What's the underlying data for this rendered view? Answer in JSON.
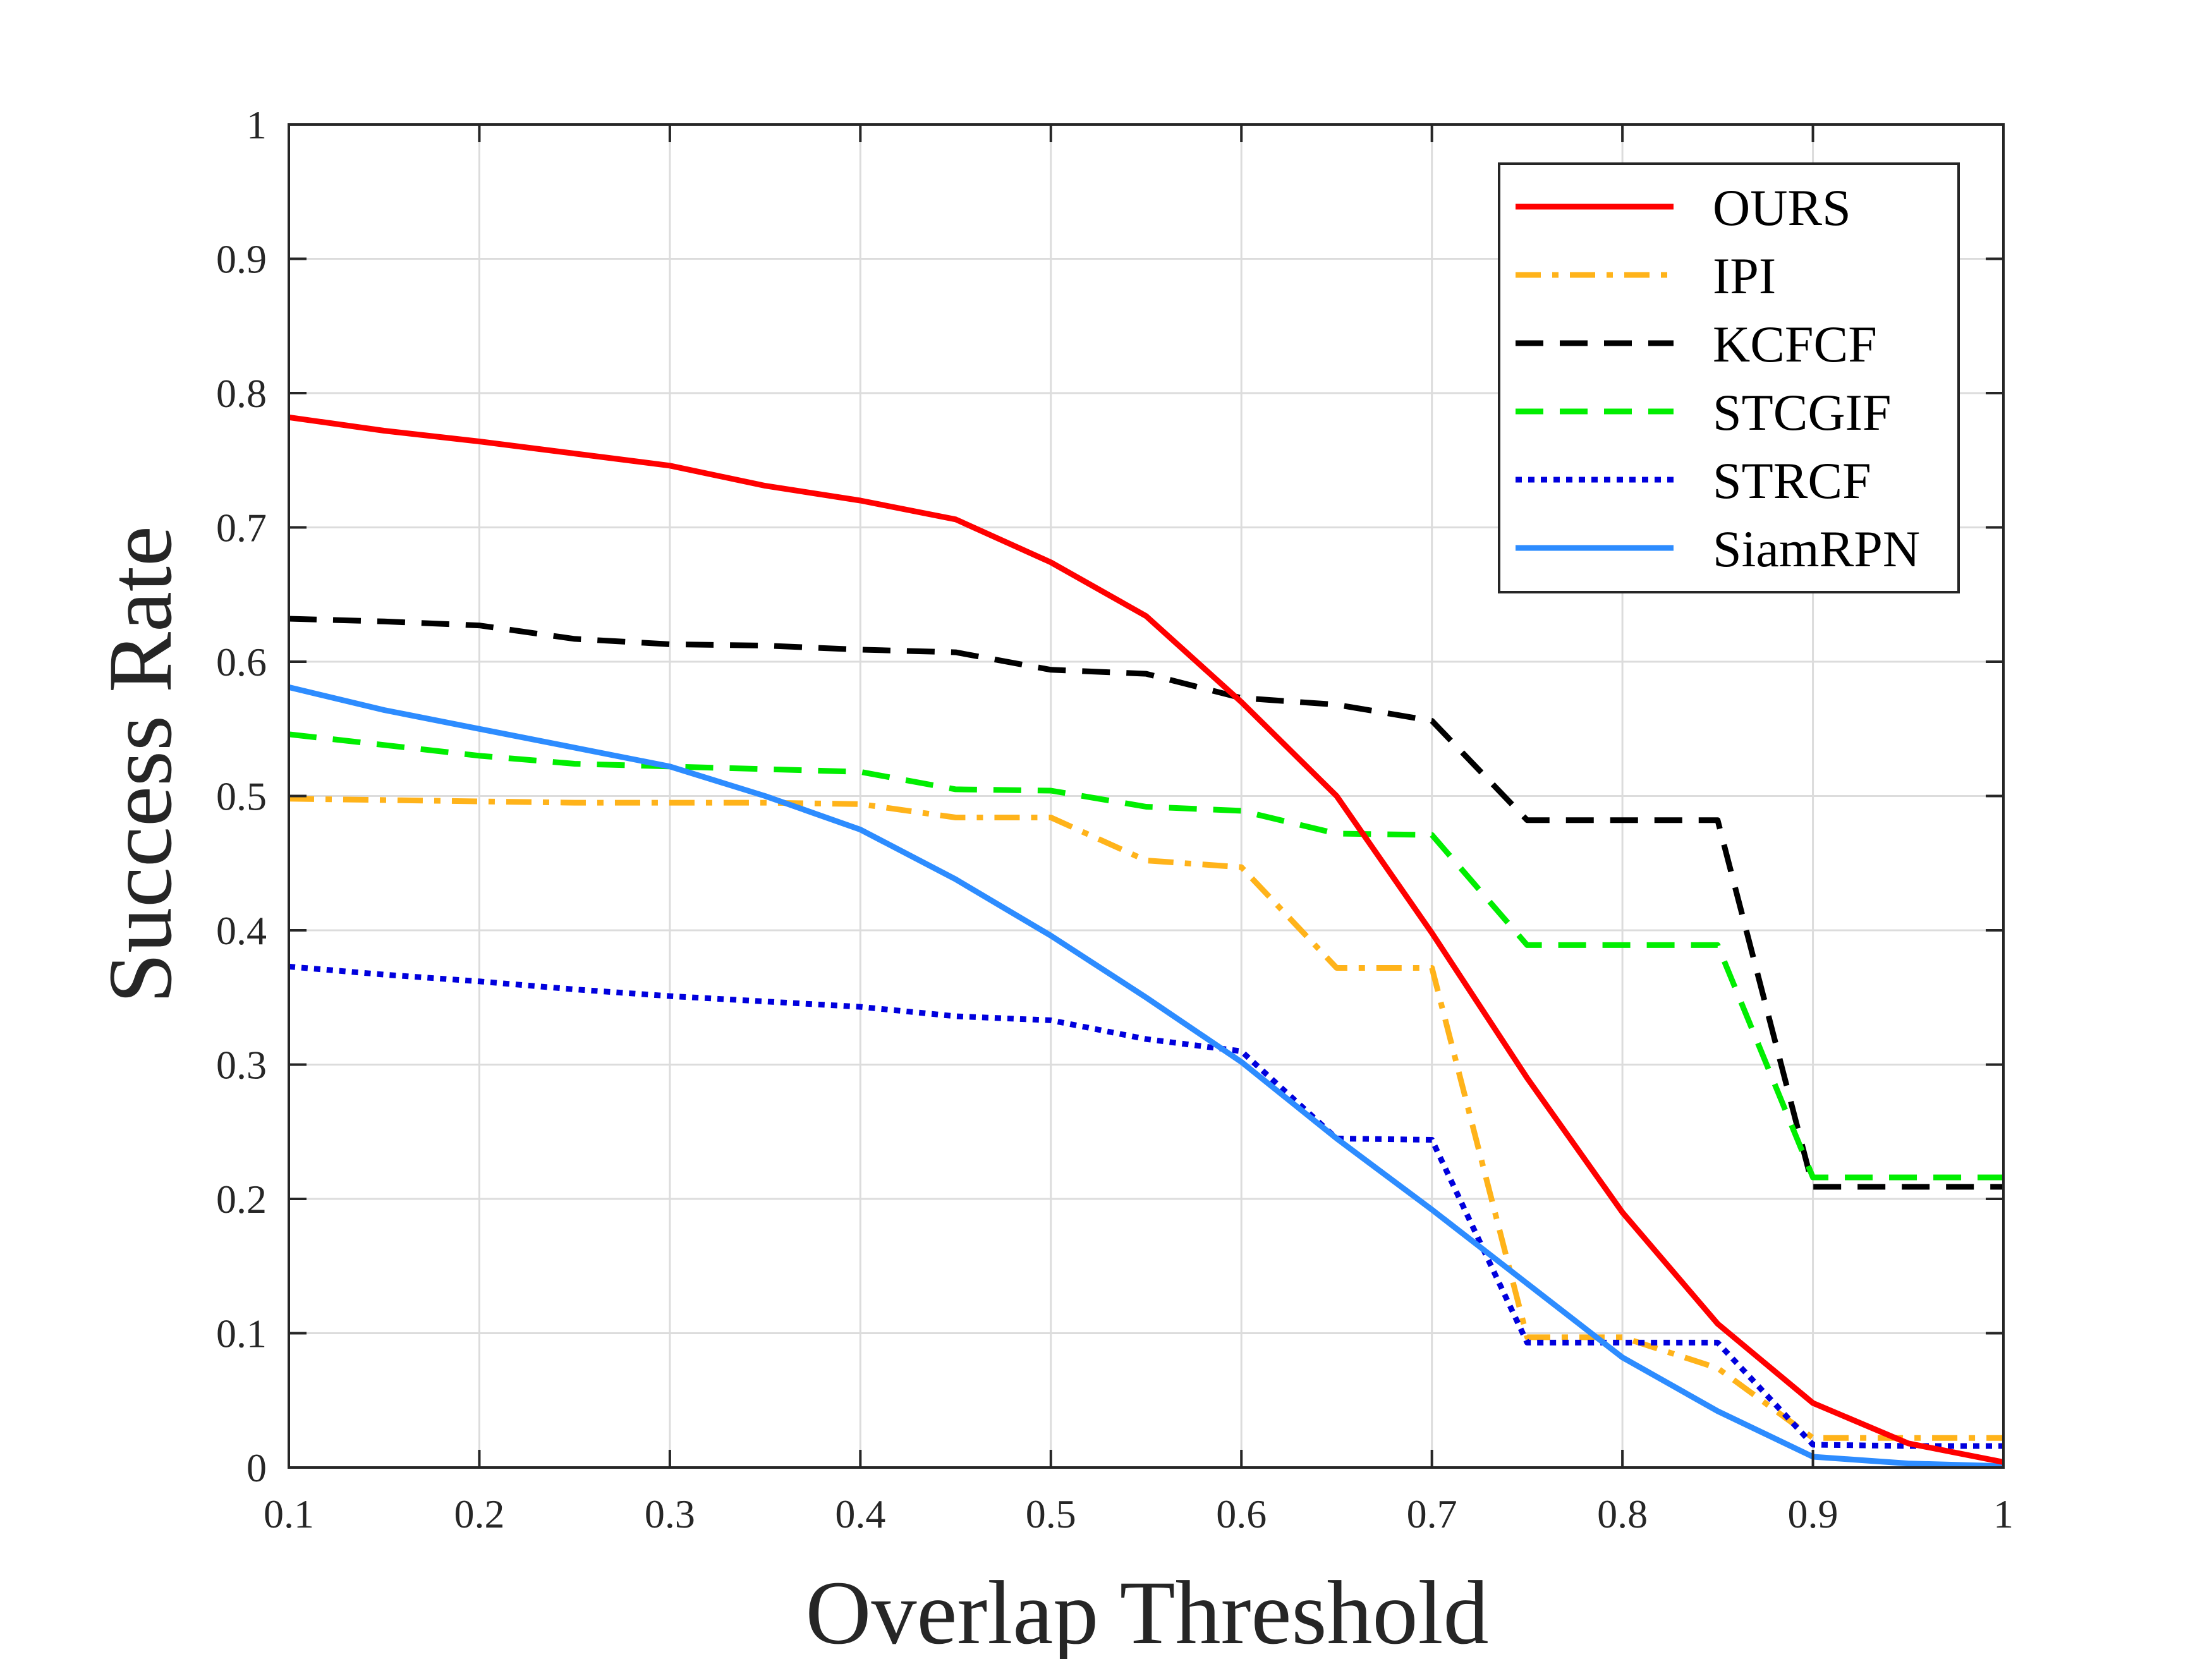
{
  "chart_data": {
    "type": "line",
    "xlabel": "Overlap Threshold",
    "ylabel": "Success Rate",
    "xlim": [
      0.1,
      1.0
    ],
    "ylim": [
      0,
      1
    ],
    "xticks": [
      0.1,
      0.2,
      0.3,
      0.4,
      0.5,
      0.6,
      0.7,
      0.8,
      0.9,
      1.0
    ],
    "xtick_labels": [
      "0.1",
      "0.2",
      "0.3",
      "0.4",
      "0.5",
      "0.6",
      "0.7",
      "0.8",
      "0.9",
      "1"
    ],
    "yticks": [
      0,
      0.1,
      0.2,
      0.3,
      0.4,
      0.5,
      0.6,
      0.7,
      0.8,
      0.9,
      1.0
    ],
    "ytick_labels": [
      "0",
      "0.1",
      "0.2",
      "0.3",
      "0.4",
      "0.5",
      "0.6",
      "0.7",
      "0.8",
      "0.9",
      "1"
    ],
    "grid": true,
    "legend_position": "top-right",
    "x": [
      0.1,
      0.15,
      0.2,
      0.25,
      0.3,
      0.35,
      0.4,
      0.45,
      0.5,
      0.55,
      0.6,
      0.65,
      0.7,
      0.75,
      0.8,
      0.85,
      0.9,
      0.95,
      1.0
    ],
    "series": [
      {
        "name": "OURS",
        "color": "#ff0000",
        "style": "solid",
        "values": [
          0.782,
          0.772,
          0.764,
          0.755,
          0.746,
          0.731,
          0.72,
          0.706,
          0.674,
          0.634,
          0.57,
          0.5,
          0.398,
          0.29,
          0.19,
          0.107,
          0.048,
          0.018,
          0.004
        ]
      },
      {
        "name": "IPI",
        "color": "#ffb31a",
        "style": "dashdot",
        "values": [
          0.498,
          0.497,
          0.496,
          0.495,
          0.495,
          0.495,
          0.494,
          0.484,
          0.484,
          0.452,
          0.447,
          0.372,
          0.372,
          0.097,
          0.097,
          0.074,
          0.022,
          0.022,
          0.022
        ]
      },
      {
        "name": "KCFCF",
        "color": "#000000",
        "style": "dashed",
        "values": [
          0.632,
          0.63,
          0.627,
          0.617,
          0.613,
          0.612,
          0.609,
          0.607,
          0.594,
          0.591,
          0.573,
          0.568,
          0.556,
          0.482,
          0.482,
          0.482,
          0.209,
          0.209,
          0.209
        ]
      },
      {
        "name": "STCGIF",
        "color": "#00ee00",
        "style": "dashed",
        "values": [
          0.546,
          0.538,
          0.53,
          0.524,
          0.522,
          0.52,
          0.518,
          0.505,
          0.504,
          0.492,
          0.489,
          0.472,
          0.471,
          0.389,
          0.389,
          0.389,
          0.216,
          0.216,
          0.216
        ]
      },
      {
        "name": "STRCF",
        "color": "#0000dd",
        "style": "dotted",
        "values": [
          0.373,
          0.367,
          0.362,
          0.356,
          0.351,
          0.347,
          0.343,
          0.336,
          0.333,
          0.319,
          0.31,
          0.245,
          0.244,
          0.093,
          0.093,
          0.093,
          0.017,
          0.016,
          0.016
        ]
      },
      {
        "name": "SiamRPN",
        "color": "#2d8cff",
        "style": "solid",
        "values": [
          0.581,
          0.564,
          0.55,
          0.536,
          0.522,
          0.5,
          0.475,
          0.438,
          0.396,
          0.35,
          0.302,
          0.245,
          0.192,
          0.137,
          0.082,
          0.042,
          0.008,
          0.003,
          0.001
        ]
      }
    ]
  }
}
